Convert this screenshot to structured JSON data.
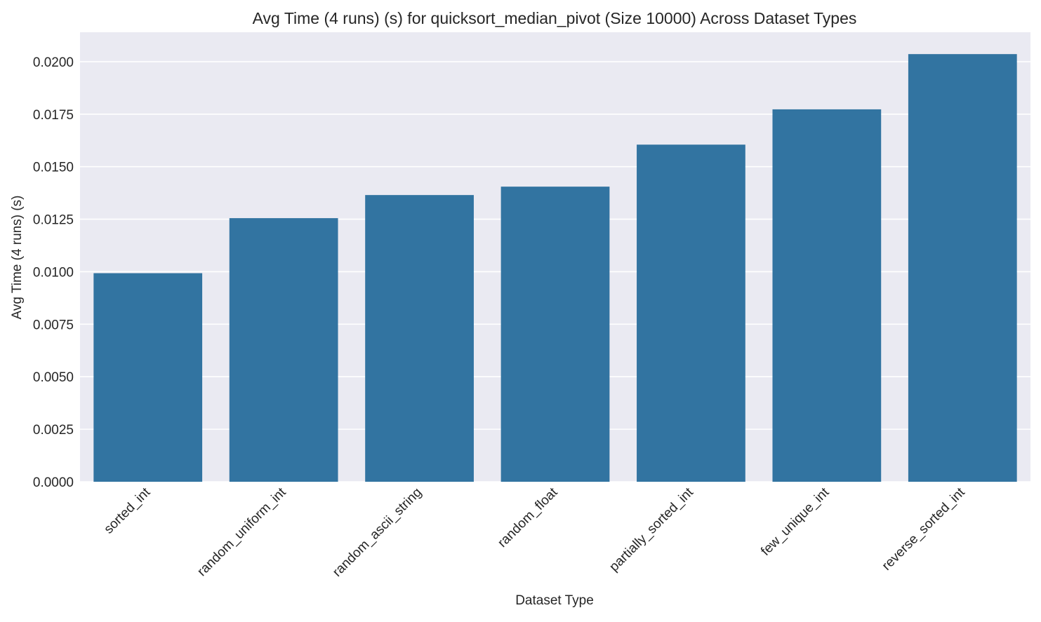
{
  "chart_data": {
    "type": "bar",
    "title": "Avg Time (4 runs) (s) for quicksort_median_pivot (Size 10000) Across Dataset Types",
    "xlabel": "Dataset Type",
    "ylabel": "Avg Time (4 runs) (s)",
    "categories": [
      "sorted_int",
      "random_uniform_int",
      "random_ascii_string",
      "random_float",
      "partially_sorted_int",
      "few_unique_int",
      "reverse_sorted_int"
    ],
    "values": [
      0.00993,
      0.01255,
      0.01365,
      0.01405,
      0.01605,
      0.01773,
      0.02036
    ],
    "ylim": [
      0,
      0.0214
    ],
    "yticks": [
      "0.0000",
      "0.0025",
      "0.0050",
      "0.0075",
      "0.0100",
      "0.0125",
      "0.0150",
      "0.0175",
      "0.0200"
    ],
    "grid": true,
    "colors": {
      "bar": "#3274a1",
      "background": "#eaeaf2",
      "grid": "#ffffff"
    }
  }
}
